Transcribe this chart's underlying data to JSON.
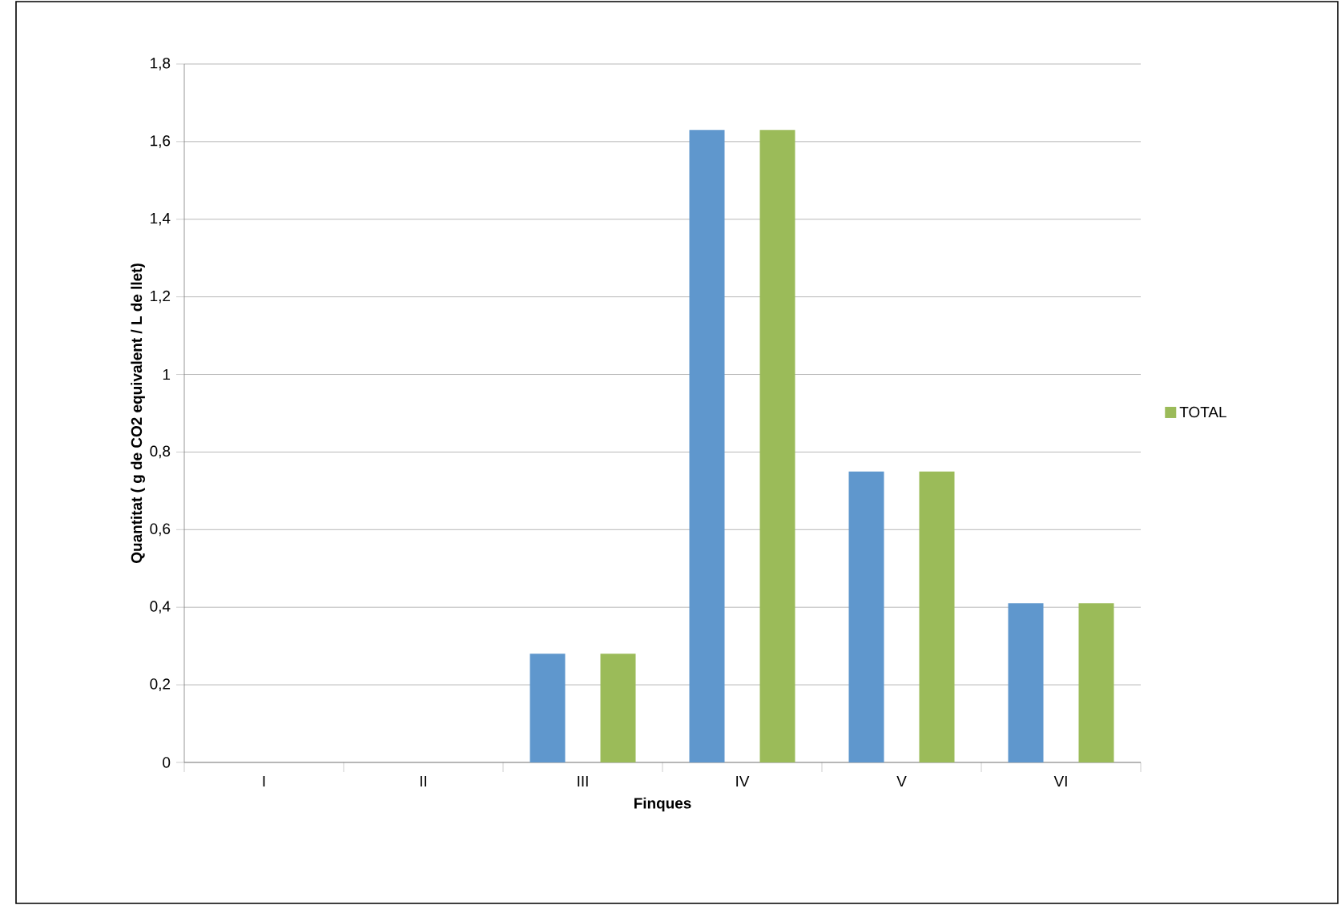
{
  "chart_data": {
    "type": "bar",
    "xlabel": "Finques",
    "ylabel": "Quantitat ( g de CO2 equivalent / L de llet)",
    "categories": [
      "I",
      "II",
      "III",
      "IV",
      "V",
      "VI"
    ],
    "series": [
      {
        "color": "#5f97cd",
        "values": [
          0,
          0,
          0.28,
          1.63,
          0.75,
          0.41
        ]
      },
      {
        "color": "#c0504d",
        "values": [
          0,
          0,
          0,
          0,
          0,
          0
        ]
      },
      {
        "name": "TOTAL",
        "color": "#9bbb59",
        "values": [
          0,
          0,
          0.28,
          1.63,
          0.75,
          0.41
        ]
      }
    ],
    "ylim": [
      0,
      1.8
    ],
    "yticks": [
      0,
      {
        "value": 0.2,
        "label": "0,2"
      },
      {
        "value": 0.4,
        "label": "0,4"
      },
      {
        "value": 0.6,
        "label": "0,6"
      },
      {
        "value": 0.8,
        "label": "0,8"
      },
      1,
      {
        "value": 1.2,
        "label": "1,2"
      },
      {
        "value": 1.4,
        "label": "1,4"
      },
      {
        "value": 1.6,
        "label": "1,6"
      },
      {
        "value": 1.8,
        "label": "1,8"
      }
    ],
    "grid": "y",
    "legend": "right"
  }
}
